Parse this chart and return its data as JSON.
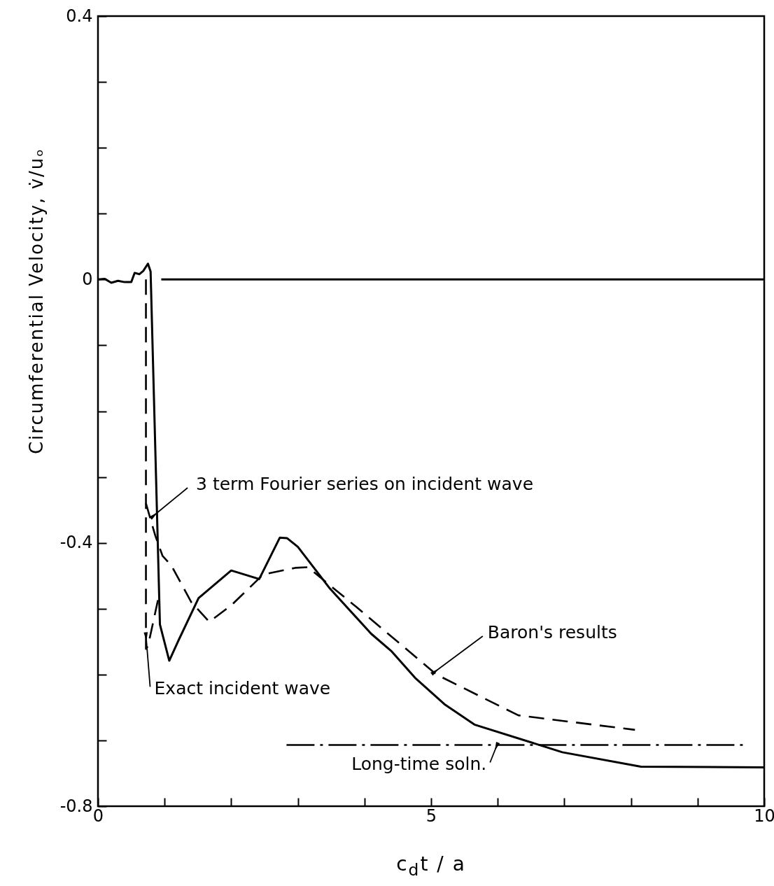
{
  "chart_data": {
    "type": "line",
    "xlabel": "c$_{d}$t / a",
    "ylabel": "Circumferential Velocity, v̇/uₒ",
    "xlim": [
      0,
      10
    ],
    "xticks": [
      0,
      {
        "value": 1,
        "label": null
      },
      {
        "value": 2,
        "label": null
      },
      {
        "value": 3,
        "label": null
      },
      {
        "value": 4,
        "label": null
      },
      5,
      {
        "value": 6,
        "label": null
      },
      {
        "value": 7,
        "label": null
      },
      {
        "value": 8,
        "label": null
      },
      {
        "value": 9,
        "label": null
      },
      10
    ],
    "ylim": [
      -0.8,
      0.4
    ],
    "yticks": [
      -0.8,
      {
        "value": -0.7,
        "label": null
      },
      {
        "value": -0.6,
        "label": null
      },
      {
        "value": -0.5,
        "label": null
      },
      -0.4,
      {
        "value": -0.3,
        "label": null
      },
      {
        "value": -0.2,
        "label": null
      },
      {
        "value": -0.1,
        "label": null
      },
      0,
      {
        "value": 0.1,
        "label": null
      },
      {
        "value": 0.2,
        "label": null
      },
      {
        "value": 0.3,
        "label": null
      },
      0.4
    ],
    "grid": false,
    "series": [
      {
        "color": "#000000",
        "line_style": "solid",
        "x": [
          0,
          0.1,
          0.2,
          0.3,
          0.4,
          0.5,
          0.55,
          0.62,
          0.68,
          0.75,
          0.79,
          0.93,
          1.07,
          1.2,
          1.51,
          2.0,
          2.42,
          2.73,
          2.84,
          3.0,
          3.47,
          4.1,
          4.41,
          4.76,
          5.2,
          5.65,
          6.97,
          8.15,
          10
        ],
        "values": [
          0,
          0.001,
          -0.005,
          -0.002,
          -0.004,
          -0.004,
          0.01,
          0.008,
          0.013,
          0.024,
          0.012,
          -0.524,
          -0.579,
          -0.55,
          -0.484,
          -0.442,
          -0.455,
          -0.392,
          -0.393,
          -0.406,
          -0.468,
          -0.538,
          -0.565,
          -0.605,
          -0.645,
          -0.676,
          -0.718,
          -0.74,
          -0.741
        ]
      },
      {
        "color": "#000000",
        "line_style": "solid",
        "x": [
          0.95,
          10
        ],
        "values": [
          0,
          0
        ]
      },
      {
        "color": "#000000",
        "line_style": "dashed",
        "x": [
          0.72,
          0.72,
          0.75,
          0.9
        ],
        "values": [
          0,
          -0.561,
          -0.557,
          -0.487
        ]
      },
      {
        "color": "#000000",
        "line_style": "dashed",
        "x": [
          0.72,
          0.86,
          0.97,
          1.1,
          1.4,
          1.67,
          2.0,
          2.48,
          2.96,
          3.15,
          3.91,
          5.08,
          6.31,
          8.06
        ],
        "values": [
          -0.34,
          -0.389,
          -0.42,
          -0.434,
          -0.49,
          -0.52,
          -0.495,
          -0.448,
          -0.438,
          -0.437,
          -0.5,
          -0.6,
          -0.662,
          -0.684
        ]
      },
      {
        "color": "#000000",
        "line_style": "dotted",
        "x": [
          2.83,
          9.7
        ],
        "values": [
          -0.707,
          -0.707
        ]
      }
    ],
    "annotations": [
      {
        "text": "3 term Fourier series on incident wave",
        "x": 0.82,
        "y": -0.36
      },
      {
        "text": "Baron's results",
        "x": 5.04,
        "y": -0.597
      },
      {
        "text": "Exact incident wave",
        "x": 0.72,
        "y": -0.54
      },
      {
        "text": "Long-time soln.",
        "x": 5.99,
        "y": -0.707
      }
    ]
  }
}
